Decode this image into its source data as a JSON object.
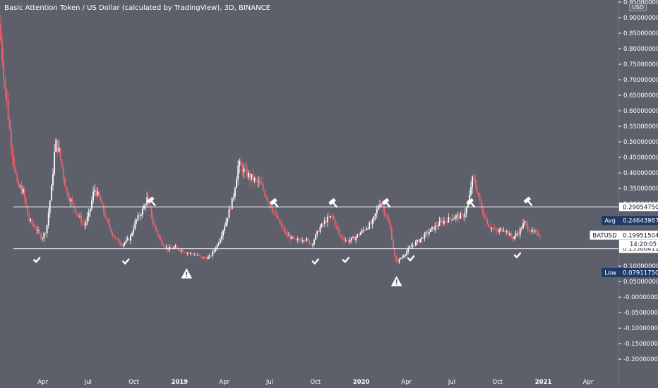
{
  "header": {
    "title": "Basic Attention Token / US Dollar (calculated by TradingView), 3D, BINANCE",
    "currency": "USD"
  },
  "colors": {
    "background": "#5d606b",
    "up": "#ffffff",
    "down": "#f0616d",
    "line": "#ffffff",
    "axis_text": "#ffffff",
    "label_dark": "#131722",
    "label_navy": "#1e3a66"
  },
  "icons": [
    "checkmark-icon",
    "hammer-icon",
    "warning-triangle-icon"
  ],
  "chart_data": {
    "type": "candlestick",
    "title": "Basic Attention Token / US Dollar (calculated by TradingView), 3D, BINANCE",
    "y_range": [
      -0.22,
      0.95
    ],
    "y_ticks": [
      {
        "value": 0.95,
        "label": "0.95000000"
      },
      {
        "value": 0.9,
        "label": "0.90000000"
      },
      {
        "value": 0.85,
        "label": "0.85000000"
      },
      {
        "value": 0.8,
        "label": "0.80000000"
      },
      {
        "value": 0.75,
        "label": "0.75000000"
      },
      {
        "value": 0.7,
        "label": "0.70000000"
      },
      {
        "value": 0.65,
        "label": "0.65000000"
      },
      {
        "value": 0.6,
        "label": "0.60000000"
      },
      {
        "value": 0.55,
        "label": "0.55000000"
      },
      {
        "value": 0.5,
        "label": "0.50000000"
      },
      {
        "value": 0.45,
        "label": "0.45000000"
      },
      {
        "value": 0.4,
        "label": "0.40000000"
      },
      {
        "value": 0.35,
        "label": "0.35000000"
      },
      {
        "value": 0.3,
        "label": "0.30000000"
      },
      {
        "value": 0.25,
        "label": "0.25000000"
      },
      {
        "value": 0.2,
        "label": "0.20000000"
      },
      {
        "value": 0.15,
        "label": "0.15000000"
      },
      {
        "value": 0.1,
        "label": "0.10000000"
      },
      {
        "value": 0.05,
        "label": "0.05000000"
      },
      {
        "value": 0.0,
        "label": "-0.00000000"
      },
      {
        "value": -0.05,
        "label": "-0.05000000"
      },
      {
        "value": -0.1,
        "label": "-0.10000000"
      },
      {
        "value": -0.15,
        "label": "-0.15000000"
      },
      {
        "value": -0.2,
        "label": "-0.20000000"
      }
    ],
    "x_range": [
      "2018-01-05",
      "2021-06-01"
    ],
    "x_ticks": [
      {
        "date": "2018-04-01",
        "label": "Apr",
        "bold": false
      },
      {
        "date": "2018-07-01",
        "label": "Jul",
        "bold": false
      },
      {
        "date": "2018-10-01",
        "label": "Oct",
        "bold": false
      },
      {
        "date": "2019-01-01",
        "label": "2019",
        "bold": true
      },
      {
        "date": "2019-04-01",
        "label": "Apr",
        "bold": false
      },
      {
        "date": "2019-07-01",
        "label": "Jul",
        "bold": false
      },
      {
        "date": "2019-10-01",
        "label": "Oct",
        "bold": false
      },
      {
        "date": "2020-01-01",
        "label": "2020",
        "bold": true
      },
      {
        "date": "2020-04-01",
        "label": "Apr",
        "bold": false
      },
      {
        "date": "2020-07-01",
        "label": "Jul",
        "bold": false
      },
      {
        "date": "2020-10-01",
        "label": "Oct",
        "bold": false
      },
      {
        "date": "2021-01-01",
        "label": "2021",
        "bold": true
      },
      {
        "date": "2021-04-01",
        "label": "Apr",
        "bold": false
      }
    ],
    "price_path": [
      [
        "2018-01-05",
        0.88
      ],
      [
        "2018-01-14",
        0.72
      ],
      [
        "2018-01-23",
        0.58
      ],
      [
        "2018-02-01",
        0.46
      ],
      [
        "2018-02-10",
        0.36
      ],
      [
        "2018-02-22",
        0.34
      ],
      [
        "2018-03-05",
        0.25
      ],
      [
        "2018-03-20",
        0.22
      ],
      [
        "2018-04-01",
        0.19
      ],
      [
        "2018-04-10",
        0.22
      ],
      [
        "2018-04-20",
        0.35
      ],
      [
        "2018-04-28",
        0.5
      ],
      [
        "2018-05-05",
        0.47
      ],
      [
        "2018-05-20",
        0.34
      ],
      [
        "2018-06-10",
        0.27
      ],
      [
        "2018-06-25",
        0.23
      ],
      [
        "2018-07-05",
        0.27
      ],
      [
        "2018-07-15",
        0.35
      ],
      [
        "2018-07-25",
        0.32
      ],
      [
        "2018-08-10",
        0.24
      ],
      [
        "2018-08-25",
        0.19
      ],
      [
        "2018-09-10",
        0.17
      ],
      [
        "2018-09-25",
        0.19
      ],
      [
        "2018-10-05",
        0.24
      ],
      [
        "2018-10-20",
        0.28
      ],
      [
        "2018-10-30",
        0.32
      ],
      [
        "2018-11-10",
        0.24
      ],
      [
        "2018-11-25",
        0.18
      ],
      [
        "2018-12-10",
        0.155
      ],
      [
        "2018-12-25",
        0.16
      ],
      [
        "2019-01-15",
        0.145
      ],
      [
        "2019-02-05",
        0.135
      ],
      [
        "2019-02-20",
        0.125
      ],
      [
        "2019-03-05",
        0.13
      ],
      [
        "2019-03-20",
        0.17
      ],
      [
        "2019-04-05",
        0.24
      ],
      [
        "2019-04-20",
        0.32
      ],
      [
        "2019-05-01",
        0.43
      ],
      [
        "2019-05-15",
        0.4
      ],
      [
        "2019-05-30",
        0.38
      ],
      [
        "2019-06-15",
        0.36
      ],
      [
        "2019-06-30",
        0.31
      ],
      [
        "2019-07-15",
        0.26
      ],
      [
        "2019-08-05",
        0.2
      ],
      [
        "2019-08-25",
        0.18
      ],
      [
        "2019-09-10",
        0.19
      ],
      [
        "2019-09-25",
        0.17
      ],
      [
        "2019-10-10",
        0.22
      ],
      [
        "2019-10-25",
        0.25
      ],
      [
        "2019-11-05",
        0.26
      ],
      [
        "2019-11-20",
        0.2
      ],
      [
        "2019-12-05",
        0.18
      ],
      [
        "2019-12-20",
        0.19
      ],
      [
        "2020-01-10",
        0.22
      ],
      [
        "2020-01-25",
        0.24
      ],
      [
        "2020-02-10",
        0.31
      ],
      [
        "2020-02-20",
        0.27
      ],
      [
        "2020-03-01",
        0.22
      ],
      [
        "2020-03-12",
        0.11
      ],
      [
        "2020-03-25",
        0.13
      ],
      [
        "2020-04-10",
        0.16
      ],
      [
        "2020-04-25",
        0.18
      ],
      [
        "2020-05-10",
        0.2
      ],
      [
        "2020-05-25",
        0.22
      ],
      [
        "2020-06-10",
        0.24
      ],
      [
        "2020-06-25",
        0.25
      ],
      [
        "2020-07-10",
        0.26
      ],
      [
        "2020-07-25",
        0.26
      ],
      [
        "2020-08-05",
        0.3
      ],
      [
        "2020-08-12",
        0.38
      ],
      [
        "2020-08-20",
        0.36
      ],
      [
        "2020-09-01",
        0.28
      ],
      [
        "2020-09-15",
        0.23
      ],
      [
        "2020-10-01",
        0.21
      ],
      [
        "2020-10-15",
        0.22
      ],
      [
        "2020-11-01",
        0.19
      ],
      [
        "2020-11-15",
        0.21
      ],
      [
        "2020-11-25",
        0.24
      ],
      [
        "2020-12-10",
        0.21
      ],
      [
        "2020-12-28",
        0.2
      ]
    ],
    "horizontal_lines": [
      {
        "value": 0.2905475,
        "from": "2018-02-01",
        "label": "0.29054750"
      },
      {
        "value": 0.15566411,
        "from": "2018-02-01",
        "label": "0.15566411"
      }
    ],
    "price_labels": [
      {
        "name": "Avg",
        "value": 0.24643967,
        "text": "0.24643967",
        "style": "navy"
      },
      {
        "name": "BATUSD",
        "value": 0.19951504,
        "text": "0.19951504",
        "style": "white",
        "countdown": "14:20:05"
      },
      {
        "name": "Low",
        "value": 0.0791175,
        "text": "0.07911750",
        "style": "navy"
      }
    ],
    "markers": [
      {
        "type": "checkmark",
        "date": "2018-03-20",
        "value": 0.12
      },
      {
        "type": "checkmark",
        "date": "2018-09-15",
        "value": 0.115
      },
      {
        "type": "checkmark",
        "date": "2019-10-01",
        "value": 0.115
      },
      {
        "type": "checkmark",
        "date": "2019-12-01",
        "value": 0.12
      },
      {
        "type": "checkmark",
        "date": "2020-04-10",
        "value": 0.125
      },
      {
        "type": "checkmark",
        "date": "2020-11-10",
        "value": 0.135
      },
      {
        "type": "hammer",
        "date": "2018-11-05",
        "value": 0.31
      },
      {
        "type": "hammer",
        "date": "2019-07-10",
        "value": 0.305
      },
      {
        "type": "hammer",
        "date": "2019-11-05",
        "value": 0.305
      },
      {
        "type": "hammer",
        "date": "2020-02-20",
        "value": 0.305
      },
      {
        "type": "hammer",
        "date": "2020-08-08",
        "value": 0.305
      },
      {
        "type": "hammer",
        "date": "2020-12-01",
        "value": 0.31
      },
      {
        "type": "warning",
        "date": "2019-01-15",
        "value": 0.075
      },
      {
        "type": "warning",
        "date": "2020-03-12",
        "value": 0.05
      }
    ]
  }
}
